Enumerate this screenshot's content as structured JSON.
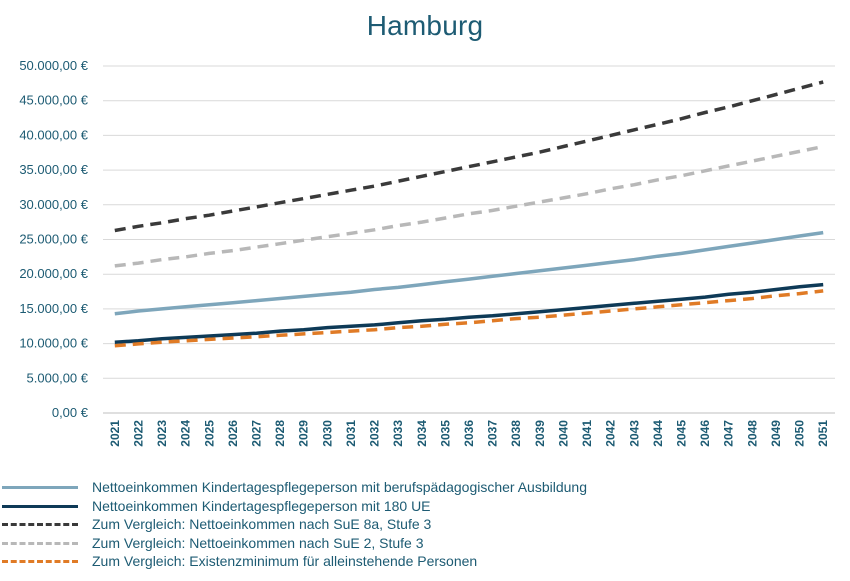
{
  "chart_data": {
    "type": "line",
    "title": "Hamburg",
    "x": [
      "2021",
      "2022",
      "2023",
      "2024",
      "2025",
      "2026",
      "2027",
      "2028",
      "2029",
      "2030",
      "2031",
      "2032",
      "2033",
      "2034",
      "2035",
      "2036",
      "2037",
      "2038",
      "2039",
      "2040",
      "2041",
      "2042",
      "2043",
      "2044",
      "2045",
      "2046",
      "2047",
      "2048",
      "2049",
      "2050",
      "2051"
    ],
    "ylim": [
      0,
      50000
    ],
    "yticks": [
      "0,00 €",
      "5.000,00 €",
      "10.000,00 €",
      "15.000,00 €",
      "20.000,00 €",
      "25.000,00 €",
      "30.000,00 €",
      "35.000,00 €",
      "40.000,00 €",
      "45.000,00 €",
      "50.000,00 €"
    ],
    "grid": true,
    "legend_position": "bottom",
    "series": [
      {
        "name": "Nettoeinkommen Kindertagespflegeperson mit berufspädagogischer Ausbildung",
        "color": "#7ea6bb",
        "dashed": false,
        "values": [
          14300,
          14700,
          15000,
          15300,
          15600,
          15900,
          16200,
          16500,
          16800,
          17100,
          17400,
          17800,
          18100,
          18500,
          18900,
          19300,
          19700,
          20100,
          20500,
          20900,
          21300,
          21700,
          22100,
          22600,
          23000,
          23500,
          24000,
          24500,
          25000,
          25500,
          26000
        ]
      },
      {
        "name": "Nettoeinkommen Kindertagespflegeperson mit 180 UE",
        "color": "#0e3a57",
        "dashed": false,
        "values": [
          10200,
          10400,
          10700,
          10900,
          11100,
          11300,
          11500,
          11800,
          12000,
          12300,
          12500,
          12700,
          13000,
          13300,
          13500,
          13800,
          14000,
          14300,
          14600,
          14900,
          15200,
          15500,
          15800,
          16100,
          16400,
          16700,
          17100,
          17400,
          17800,
          18200,
          18500
        ]
      },
      {
        "name": "Zum Vergleich: Nettoeinkommen nach SuE 8a, Stufe 3",
        "color": "#3a3a3a",
        "dashed": true,
        "values": [
          26300,
          26900,
          27400,
          28000,
          28500,
          29100,
          29700,
          30300,
          30900,
          31500,
          32100,
          32700,
          33400,
          34100,
          34800,
          35500,
          36200,
          36900,
          37600,
          38400,
          39200,
          40000,
          40800,
          41600,
          42400,
          43300,
          44100,
          45000,
          45900,
          46800,
          47700
        ]
      },
      {
        "name": "Zum Vergleich: Nettoeinkommen nach SuE 2, Stufe 3",
        "color": "#b8b8b8",
        "dashed": true,
        "values": [
          21200,
          21600,
          22100,
          22500,
          23000,
          23400,
          23900,
          24400,
          24900,
          25400,
          25900,
          26400,
          27000,
          27500,
          28100,
          28700,
          29200,
          29800,
          30400,
          31000,
          31600,
          32300,
          32900,
          33600,
          34200,
          34900,
          35600,
          36300,
          37000,
          37700,
          38400
        ]
      },
      {
        "name": "Zum Vergleich: Existenzminimum für alleinstehende Personen",
        "color": "#e07b26",
        "dashed": true,
        "values": [
          9700,
          9950,
          10200,
          10400,
          10600,
          10800,
          11000,
          11200,
          11400,
          11600,
          11800,
          12000,
          12300,
          12500,
          12800,
          13000,
          13300,
          13600,
          13800,
          14100,
          14400,
          14700,
          15000,
          15300,
          15600,
          15900,
          16200,
          16500,
          16900,
          17200,
          17600
        ]
      }
    ]
  }
}
